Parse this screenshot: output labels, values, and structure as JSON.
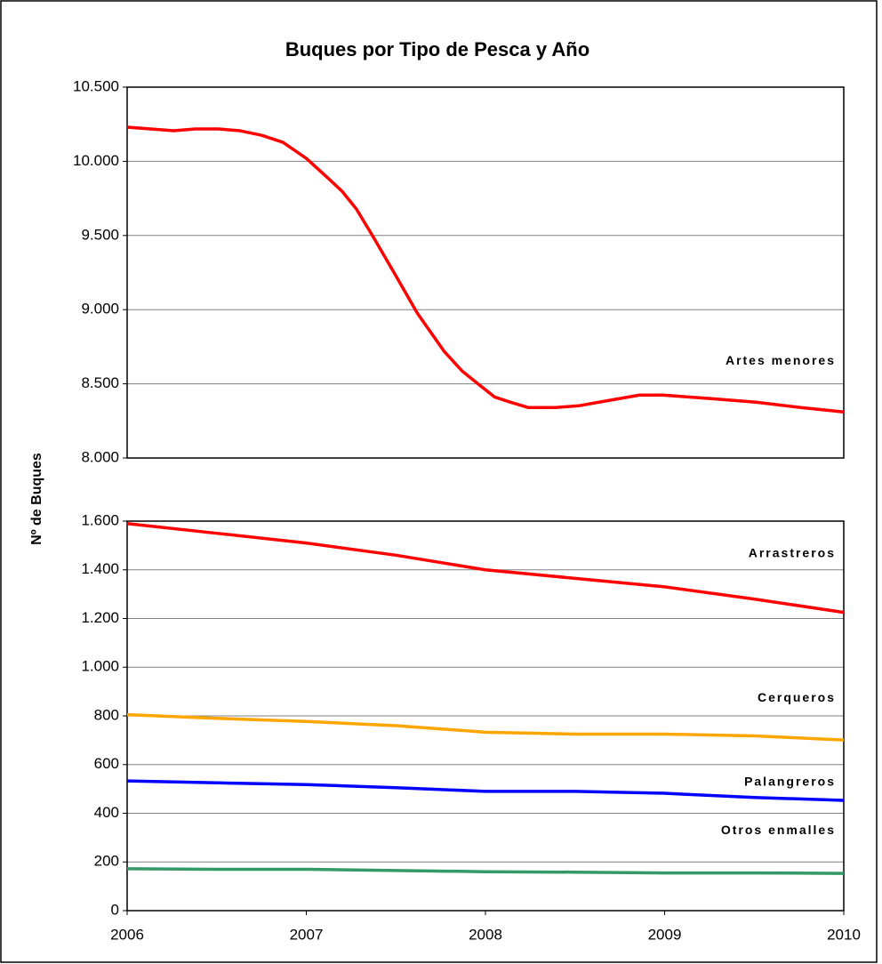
{
  "chart_data": [
    {
      "type": "line",
      "title": "Buques por Tipo de Pesca y Año",
      "y_label": "Nº de Buques",
      "x": [
        2006,
        2006.26,
        2006.38,
        2006.51,
        2006.63,
        2006.75,
        2006.87,
        2007,
        2007.12,
        2007.2,
        2007.28,
        2007.37,
        2007.5,
        2007.62,
        2007.77,
        2007.87,
        2007.95,
        2008.05,
        2008.14,
        2008.24,
        2008.39,
        2008.52,
        2008.69,
        2008.86,
        2008.99,
        2009.26,
        2009.51,
        2009.76,
        2010
      ],
      "series": [
        {
          "name": "Artes menores",
          "color": "#ff0000",
          "values": [
            10230,
            10206,
            10218,
            10218,
            10206,
            10176,
            10128,
            10020,
            9888,
            9798,
            9678,
            9498,
            9228,
            8976,
            8718,
            8586,
            8508,
            8412,
            8376,
            8340,
            8340,
            8352,
            8388,
            8424,
            8424,
            8400,
            8376,
            8340,
            8310
          ]
        }
      ],
      "xlim": [
        2006,
        2010
      ],
      "ylim": [
        8000,
        10500
      ],
      "yticks": [
        {
          "value": 8000,
          "label": "8.000"
        },
        {
          "value": 8500,
          "label": "8.500"
        },
        {
          "value": 9000,
          "label": "9.000"
        },
        {
          "value": 9500,
          "label": "9.500"
        },
        {
          "value": 10000,
          "label": "10.000"
        },
        {
          "value": 10500,
          "label": "10.500"
        }
      ],
      "grid": true
    },
    {
      "type": "line",
      "x": [
        2006,
        2006.5,
        2007,
        2007.5,
        2008,
        2008.5,
        2009,
        2009.5,
        2010
      ],
      "series": [
        {
          "name": "Arrastreros",
          "color": "#ff0000",
          "values": [
            1590,
            1550,
            1510,
            1460,
            1400,
            1365,
            1330,
            1280,
            1225
          ]
        },
        {
          "name": "Cerqueros",
          "color": "#ffa500",
          "values": [
            805,
            790,
            777,
            760,
            733,
            725,
            725,
            718,
            701
          ]
        },
        {
          "name": "Palangreros",
          "color": "#0000ff",
          "values": [
            533,
            525,
            518,
            505,
            490,
            490,
            482,
            465,
            453
          ]
        },
        {
          "name": "Otros enmalles",
          "color": "#339966",
          "values": [
            172,
            170,
            170,
            165,
            160,
            158,
            155,
            155,
            153
          ]
        }
      ],
      "xlim": [
        2006,
        2010
      ],
      "ylim": [
        0,
        1600
      ],
      "yticks": [
        0,
        200,
        400,
        600,
        800,
        {
          "value": 1000,
          "label": "1.000"
        },
        {
          "value": 1200,
          "label": "1.200"
        },
        {
          "value": 1400,
          "label": "1.400"
        },
        {
          "value": 1600,
          "label": "1.600"
        }
      ],
      "xticks": [
        2006,
        2007,
        2008,
        2009,
        2010
      ],
      "grid": true
    }
  ]
}
